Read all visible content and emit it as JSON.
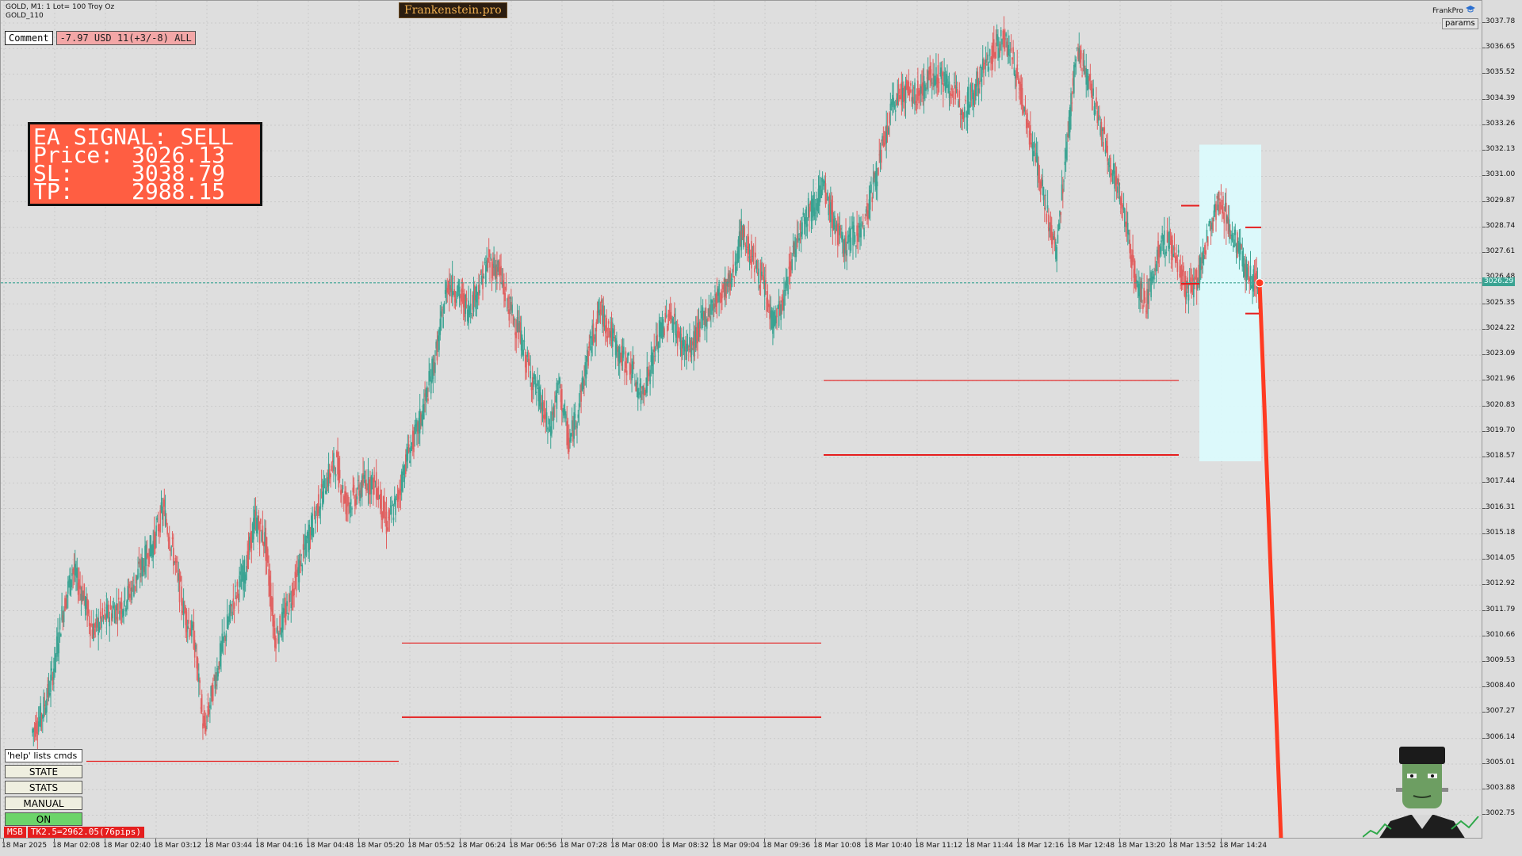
{
  "chart": {
    "symbol_line": "GOLD, M1:  1 Lot= 100 Troy Oz",
    "indicator_line": "GOLD_110",
    "brand": "Frankenstein.pro",
    "comment_label": "Comment",
    "comment_value": "-7.97 USD 11(+3/-8) ALL",
    "frankpro_label": "FrankPro",
    "params_label": "params",
    "current_price_label": "3026.29",
    "colors": {
      "background": "#dedede",
      "bull": "#3aa392",
      "bear": "#e06060",
      "signal": "#ff5e42",
      "level": "#e51e1e",
      "highlight": "#dcfcfe",
      "current_line": "#3aa392"
    }
  },
  "signal": {
    "title": "EA SIGNAL: SELL",
    "rows": [
      {
        "key": "Price:",
        "value": "3026.13"
      },
      {
        "key": "SL:",
        "value": "3038.79"
      },
      {
        "key": "TP:",
        "value": "2988.15"
      }
    ]
  },
  "price_axis": [
    "3037.78",
    "3036.65",
    "3035.52",
    "3034.39",
    "3033.26",
    "3032.13",
    "3031.00",
    "3029.87",
    "3028.74",
    "3027.61",
    "3026.48",
    "3025.35",
    "3024.22",
    "3023.09",
    "3021.96",
    "3020.83",
    "3019.70",
    "3018.57",
    "3017.44",
    "3016.31",
    "3015.18",
    "3014.05",
    "3012.92",
    "3011.79",
    "3010.66",
    "3009.53",
    "3008.40",
    "3007.27",
    "3006.14",
    "3005.01",
    "3003.88",
    "3002.75"
  ],
  "time_axis": [
    "18 Mar 2025",
    "18 Mar 02:08",
    "18 Mar 02:40",
    "18 Mar 03:12",
    "18 Mar 03:44",
    "18 Mar 04:16",
    "18 Mar 04:48",
    "18 Mar 05:20",
    "18 Mar 05:52",
    "18 Mar 06:24",
    "18 Mar 06:56",
    "18 Mar 07:28",
    "18 Mar 08:00",
    "18 Mar 08:32",
    "18 Mar 09:04",
    "18 Mar 09:36",
    "18 Mar 10:08",
    "18 Mar 10:40",
    "18 Mar 11:12",
    "18 Mar 11:44",
    "18 Mar 12:16",
    "18 Mar 12:48",
    "18 Mar 13:20",
    "18 Mar 13:52",
    "18 Mar 14:24"
  ],
  "controls": {
    "help": "'help' lists cmds",
    "state": "STATE",
    "stats": "STATS",
    "manual": "MANUAL",
    "on": "ON"
  },
  "status": {
    "msb": "MSB",
    "tk": "TK2.5=2962.05(76pips)"
  },
  "chart_data": {
    "type": "candlestick",
    "symbol": "GOLD",
    "timeframe": "M1",
    "ylim": [
      3001.6,
      3038.9
    ],
    "close_path": [
      [
        0,
        3006.4
      ],
      [
        1,
        3007.2
      ],
      [
        2,
        3008.8
      ],
      [
        3,
        3011.6
      ],
      [
        4,
        3013.6
      ],
      [
        5,
        3012.6
      ],
      [
        6,
        3010.9
      ],
      [
        7,
        3011.4
      ],
      [
        8,
        3011.8
      ],
      [
        9,
        3012.1
      ],
      [
        10,
        3012.9
      ],
      [
        11,
        3013.9
      ],
      [
        12,
        3014.8
      ],
      [
        13,
        3016.3
      ],
      [
        14,
        3014.2
      ],
      [
        15,
        3011.8
      ],
      [
        16,
        3010.6
      ],
      [
        17,
        3006.4
      ],
      [
        18,
        3008.6
      ],
      [
        19,
        3010.6
      ],
      [
        20,
        3012.4
      ],
      [
        21,
        3013.5
      ],
      [
        22,
        3015.8
      ],
      [
        23,
        3014.9
      ],
      [
        24,
        3010.6
      ],
      [
        25,
        3011.6
      ],
      [
        26,
        3013.1
      ],
      [
        27,
        3014.6
      ],
      [
        28,
        3016.1
      ],
      [
        29,
        3017.5
      ],
      [
        30,
        3018.4
      ],
      [
        31,
        3016.5
      ],
      [
        32,
        3016.9
      ],
      [
        33,
        3017.6
      ],
      [
        34,
        3017.3
      ],
      [
        35,
        3015.6
      ],
      [
        36,
        3016.6
      ],
      [
        37,
        3018.6
      ],
      [
        38,
        3019.7
      ],
      [
        39,
        3021.4
      ],
      [
        40,
        3023.4
      ],
      [
        41,
        3026.3
      ],
      [
        42,
        3025.9
      ],
      [
        43,
        3025.1
      ],
      [
        44,
        3026.0
      ],
      [
        45,
        3027.2
      ],
      [
        46,
        3026.9
      ],
      [
        47,
        3025.3
      ],
      [
        48,
        3024.2
      ],
      [
        49,
        3022.5
      ],
      [
        50,
        3021.3
      ],
      [
        51,
        3019.7
      ],
      [
        52,
        3021.8
      ],
      [
        53,
        3019.1
      ],
      [
        54,
        3021.0
      ],
      [
        55,
        3023.4
      ],
      [
        56,
        3025.1
      ],
      [
        57,
        3024.2
      ],
      [
        58,
        3023.0
      ],
      [
        59,
        3022.7
      ],
      [
        60,
        3021.3
      ],
      [
        61,
        3022.5
      ],
      [
        62,
        3024.2
      ],
      [
        63,
        3024.9
      ],
      [
        64,
        3023.6
      ],
      [
        65,
        3023.3
      ],
      [
        66,
        3024.5
      ],
      [
        67,
        3025.2
      ],
      [
        68,
        3025.9
      ],
      [
        69,
        3026.4
      ],
      [
        70,
        3028.5
      ],
      [
        71,
        3027.5
      ],
      [
        72,
        3026.4
      ],
      [
        73,
        3024.6
      ],
      [
        74,
        3025.2
      ],
      [
        75,
        3027.5
      ],
      [
        76,
        3029.1
      ],
      [
        77,
        3029.7
      ],
      [
        78,
        3030.5
      ],
      [
        79,
        3029.1
      ],
      [
        80,
        3027.9
      ],
      [
        81,
        3028.4
      ],
      [
        82,
        3028.8
      ],
      [
        83,
        3030.6
      ],
      [
        84,
        3032.4
      ],
      [
        85,
        3034.3
      ],
      [
        86,
        3034.8
      ],
      [
        87,
        3034.5
      ],
      [
        88,
        3035.0
      ],
      [
        89,
        3035.6
      ],
      [
        90,
        3035.2
      ],
      [
        91,
        3034.6
      ],
      [
        92,
        3034.0
      ],
      [
        93,
        3034.9
      ],
      [
        94,
        3035.9
      ],
      [
        95,
        3036.7
      ],
      [
        96,
        3037.1
      ],
      [
        97,
        3035.7
      ],
      [
        98,
        3033.8
      ],
      [
        99,
        3031.8
      ],
      [
        100,
        3029.6
      ],
      [
        101,
        3027.5
      ],
      [
        102,
        3032.1
      ],
      [
        103,
        3036.6
      ],
      [
        104,
        3035.5
      ],
      [
        105,
        3033.8
      ],
      [
        106,
        3032.1
      ],
      [
        107,
        3030.6
      ],
      [
        108,
        3028.7
      ],
      [
        109,
        3026.2
      ],
      [
        110,
        3025.4
      ],
      [
        111,
        3027.6
      ],
      [
        112,
        3028.2
      ],
      [
        113,
        3027.3
      ],
      [
        114,
        3025.8
      ],
      [
        115,
        3026.6
      ],
      [
        116,
        3028.4
      ],
      [
        117,
        3029.9
      ],
      [
        118,
        3029.0
      ],
      [
        119,
        3027.7
      ],
      [
        120,
        3026.6
      ],
      [
        121,
        3026.3
      ]
    ]
  }
}
